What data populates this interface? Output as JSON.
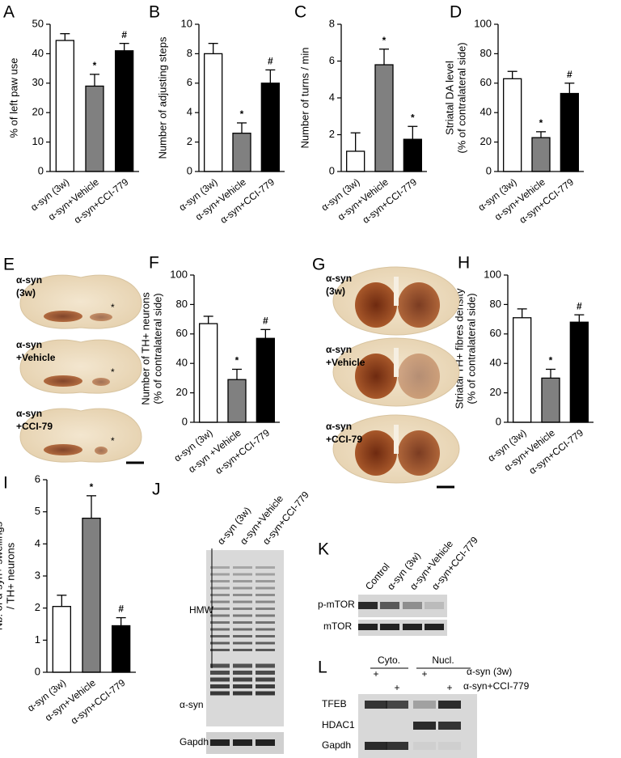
{
  "chart_data": [
    {
      "panel": "A",
      "type": "bar",
      "ylabel": [
        "% of left paw use"
      ],
      "categories": [
        "α-syn (3w)",
        "α-syn+Vehicle",
        "α-syn+CCI-779"
      ],
      "values": [
        44.5,
        29,
        41
      ],
      "errors": [
        2.3,
        4,
        2.5
      ],
      "annotations": [
        null,
        "*",
        "#"
      ],
      "colors": [
        "#ffffff",
        "#808080",
        "#000000"
      ],
      "ylim": [
        0,
        50
      ],
      "yticks": [
        0,
        10,
        20,
        30,
        40,
        50
      ]
    },
    {
      "panel": "B",
      "type": "bar",
      "ylabel": [
        "Number of adjusting steps"
      ],
      "categories": [
        "α-syn (3w)",
        "α-syn+Vehicle",
        "α-syn+CCI-779"
      ],
      "values": [
        8,
        2.6,
        6
      ],
      "errors": [
        0.7,
        0.7,
        0.9
      ],
      "annotations": [
        null,
        "*",
        "#"
      ],
      "colors": [
        "#ffffff",
        "#808080",
        "#000000"
      ],
      "ylim": [
        0,
        10
      ],
      "yticks": [
        0,
        2,
        4,
        6,
        8,
        10
      ]
    },
    {
      "panel": "C",
      "type": "bar",
      "ylabel": [
        "Number of turns / min"
      ],
      "categories": [
        "α-syn (3w)",
        "α-syn+Vehicle",
        "α-syn+CCI-779"
      ],
      "values": [
        1.1,
        5.8,
        1.75
      ],
      "errors": [
        1.0,
        0.85,
        0.7
      ],
      "annotations": [
        null,
        "*",
        "*"
      ],
      "colors": [
        "#ffffff",
        "#808080",
        "#000000"
      ],
      "ylim": [
        0,
        8
      ],
      "yticks": [
        0,
        2,
        4,
        6,
        8
      ]
    },
    {
      "panel": "D",
      "type": "bar",
      "ylabel": [
        "Striatal DA level",
        "(% of contralateral side)"
      ],
      "categories": [
        "α-syn (3w)",
        "α-syn+Vehicle",
        "α-syn+CCI-779"
      ],
      "values": [
        63,
        23,
        53
      ],
      "errors": [
        5,
        4,
        7
      ],
      "annotations": [
        null,
        "*",
        "#"
      ],
      "colors": [
        "#ffffff",
        "#808080",
        "#000000"
      ],
      "ylim": [
        0,
        100
      ],
      "yticks": [
        0,
        20,
        40,
        60,
        80,
        100
      ]
    },
    {
      "panel": "F",
      "type": "bar",
      "ylabel": [
        "Number of TH+ neurons",
        "(% of contralateral side)"
      ],
      "categories": [
        "α-syn (3w)",
        "α-syn +Vehicle",
        "α-syn+CCI-779"
      ],
      "values": [
        67,
        29,
        57
      ],
      "errors": [
        5,
        7,
        6
      ],
      "annotations": [
        null,
        "*",
        "#"
      ],
      "colors": [
        "#ffffff",
        "#808080",
        "#000000"
      ],
      "ylim": [
        0,
        100
      ],
      "yticks": [
        0,
        20,
        40,
        60,
        80,
        100
      ]
    },
    {
      "panel": "H",
      "type": "bar",
      "ylabel": [
        "Striatal TH+ fibres density",
        "(% of contralateral side)"
      ],
      "categories": [
        "α-syn (3w)",
        "α-syn+Vehicle",
        "α-syn+CCI-779"
      ],
      "values": [
        71,
        30,
        68
      ],
      "errors": [
        6,
        6,
        5
      ],
      "annotations": [
        null,
        "*",
        "#"
      ],
      "colors": [
        "#ffffff",
        "#808080",
        "#000000"
      ],
      "ylim": [
        0,
        100
      ],
      "yticks": [
        0,
        20,
        40,
        60,
        80,
        100
      ]
    },
    {
      "panel": "I",
      "type": "bar",
      "ylabel": [
        "Nb. of α-syn+ swellings",
        "/ TH+ neurons"
      ],
      "categories": [
        "α-syn (3w)",
        "α-syn+Vehicle",
        "α-syn+CCI-779"
      ],
      "values": [
        2.05,
        4.8,
        1.45
      ],
      "errors": [
        0.35,
        0.7,
        0.25
      ],
      "annotations": [
        null,
        "*",
        "#"
      ],
      "colors": [
        "#ffffff",
        "#808080",
        "#000000"
      ],
      "ylim": [
        0,
        6
      ],
      "yticks": [
        0,
        1,
        2,
        3,
        4,
        5,
        6
      ]
    }
  ],
  "images": {
    "E": {
      "panel": "E",
      "labels": [
        [
          "α-syn",
          "(3w)"
        ],
        [
          "α-syn",
          "+Vehicle"
        ],
        [
          "α-syn",
          "+CCI-79"
        ]
      ],
      "marks": [
        "*",
        "*",
        "*"
      ]
    },
    "G": {
      "panel": "G",
      "labels": [
        [
          "α-syn",
          "(3w)"
        ],
        [
          "α-syn",
          "+Vehicle"
        ],
        [
          "α-syn",
          "+CCI-79"
        ]
      ]
    },
    "J": {
      "panel": "J",
      "lanes": [
        "α-syn (3w)",
        "α-syn+Vehicle",
        "α-syn+CCI-779"
      ],
      "rows": [
        "HMW",
        "α-syn",
        "Gapdh"
      ]
    },
    "K": {
      "panel": "K",
      "lanes": [
        "Control",
        "α-syn (3w)",
        "α-syn+Vehicle",
        "α-syn+CCI-779"
      ],
      "rows": [
        "p-mTOR",
        "mTOR"
      ]
    },
    "L": {
      "panel": "L",
      "groups": [
        "Cyto.",
        "Nucl."
      ],
      "plus": [
        "+",
        "+",
        "+",
        "+"
      ],
      "conditions": [
        "α-syn (3w)",
        "α-syn+CCI-779"
      ],
      "rows": [
        "TFEB",
        "HDAC1",
        "Gapdh"
      ]
    }
  }
}
